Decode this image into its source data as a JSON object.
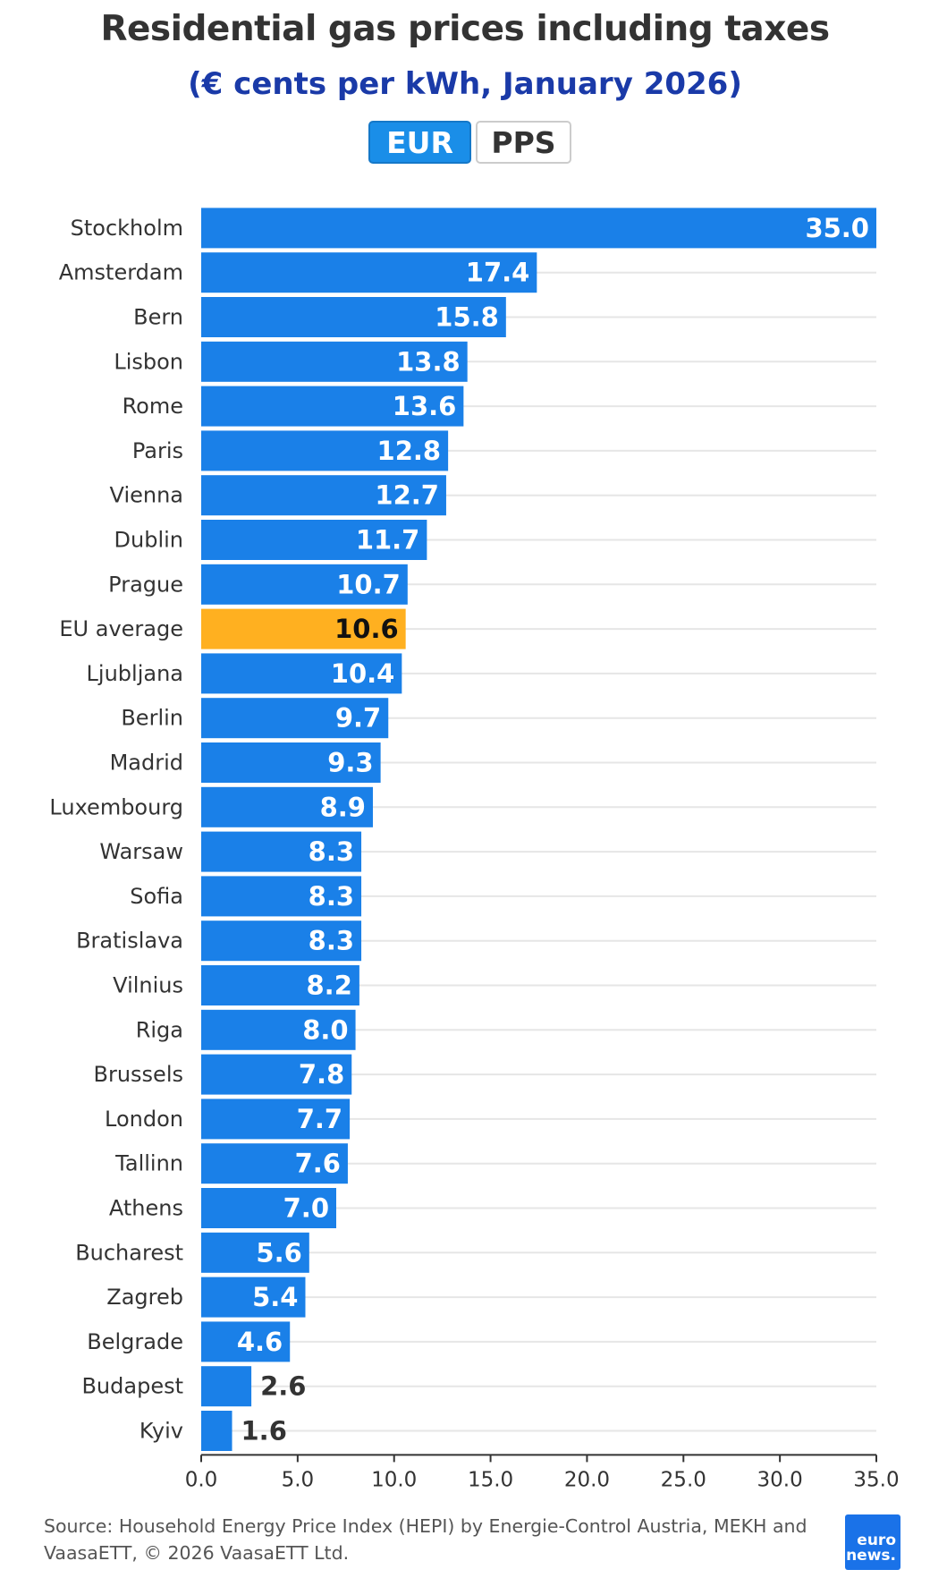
{
  "header": {
    "title": "Residential gas prices including taxes",
    "subtitle": "(€ cents per kWh, January 2026)"
  },
  "toggle": {
    "eur_label": "EUR",
    "pps_label": "PPS",
    "selected": "EUR"
  },
  "chart_data": {
    "type": "bar",
    "orientation": "horizontal",
    "title": "Residential gas prices including taxes",
    "subtitle": "(€ cents per kWh, January 2026)",
    "xlabel": "",
    "ylabel": "",
    "xlim": [
      0,
      35
    ],
    "xticks": [
      "0.0",
      "5.0",
      "10.0",
      "15.0",
      "20.0",
      "25.0",
      "30.0",
      "35.0"
    ],
    "categories": [
      "Stockholm",
      "Amsterdam",
      "Bern",
      "Lisbon",
      "Rome",
      "Paris",
      "Vienna",
      "Dublin",
      "Prague",
      "EU average",
      "Ljubljana",
      "Berlin",
      "Madrid",
      "Luxembourg",
      "Warsaw",
      "Sofia",
      "Bratislava",
      "Vilnius",
      "Riga",
      "Brussels",
      "London",
      "Tallinn",
      "Athens",
      "Bucharest",
      "Zagreb",
      "Belgrade",
      "Budapest",
      "Kyiv"
    ],
    "values": [
      35.0,
      17.4,
      15.8,
      13.8,
      13.6,
      12.8,
      12.7,
      11.7,
      10.7,
      10.6,
      10.4,
      9.7,
      9.3,
      8.9,
      8.3,
      8.3,
      8.3,
      8.2,
      8.0,
      7.8,
      7.7,
      7.6,
      7.0,
      5.6,
      5.4,
      4.6,
      2.6,
      1.6
    ],
    "labels": [
      "35.0",
      "17.4",
      "15.8",
      "13.8",
      "13.6",
      "12.8",
      "12.7",
      "11.7",
      "10.7",
      "10.6",
      "10.4",
      "9.7",
      "9.3",
      "8.9",
      "8.3",
      "8.3",
      "8.3",
      "8.2",
      "8.0",
      "7.8",
      "7.7",
      "7.6",
      "7.0",
      "5.6",
      "5.4",
      "4.6",
      "2.6",
      "1.6"
    ],
    "highlight": "EU average",
    "colors": {
      "bar": "#1a80e8",
      "highlight": "#ffb020",
      "grid": "#e6e6e6",
      "label_inside": "#ffffff",
      "label_outside": "#333333"
    }
  },
  "footer": {
    "source": "Source: Household Energy Price Index (HEPI) by Energie-Control Austria, MEKH and VaasaETT, © 2026 VaasaETT Ltd.",
    "logo_line1": "euro",
    "logo_line2": "news."
  }
}
